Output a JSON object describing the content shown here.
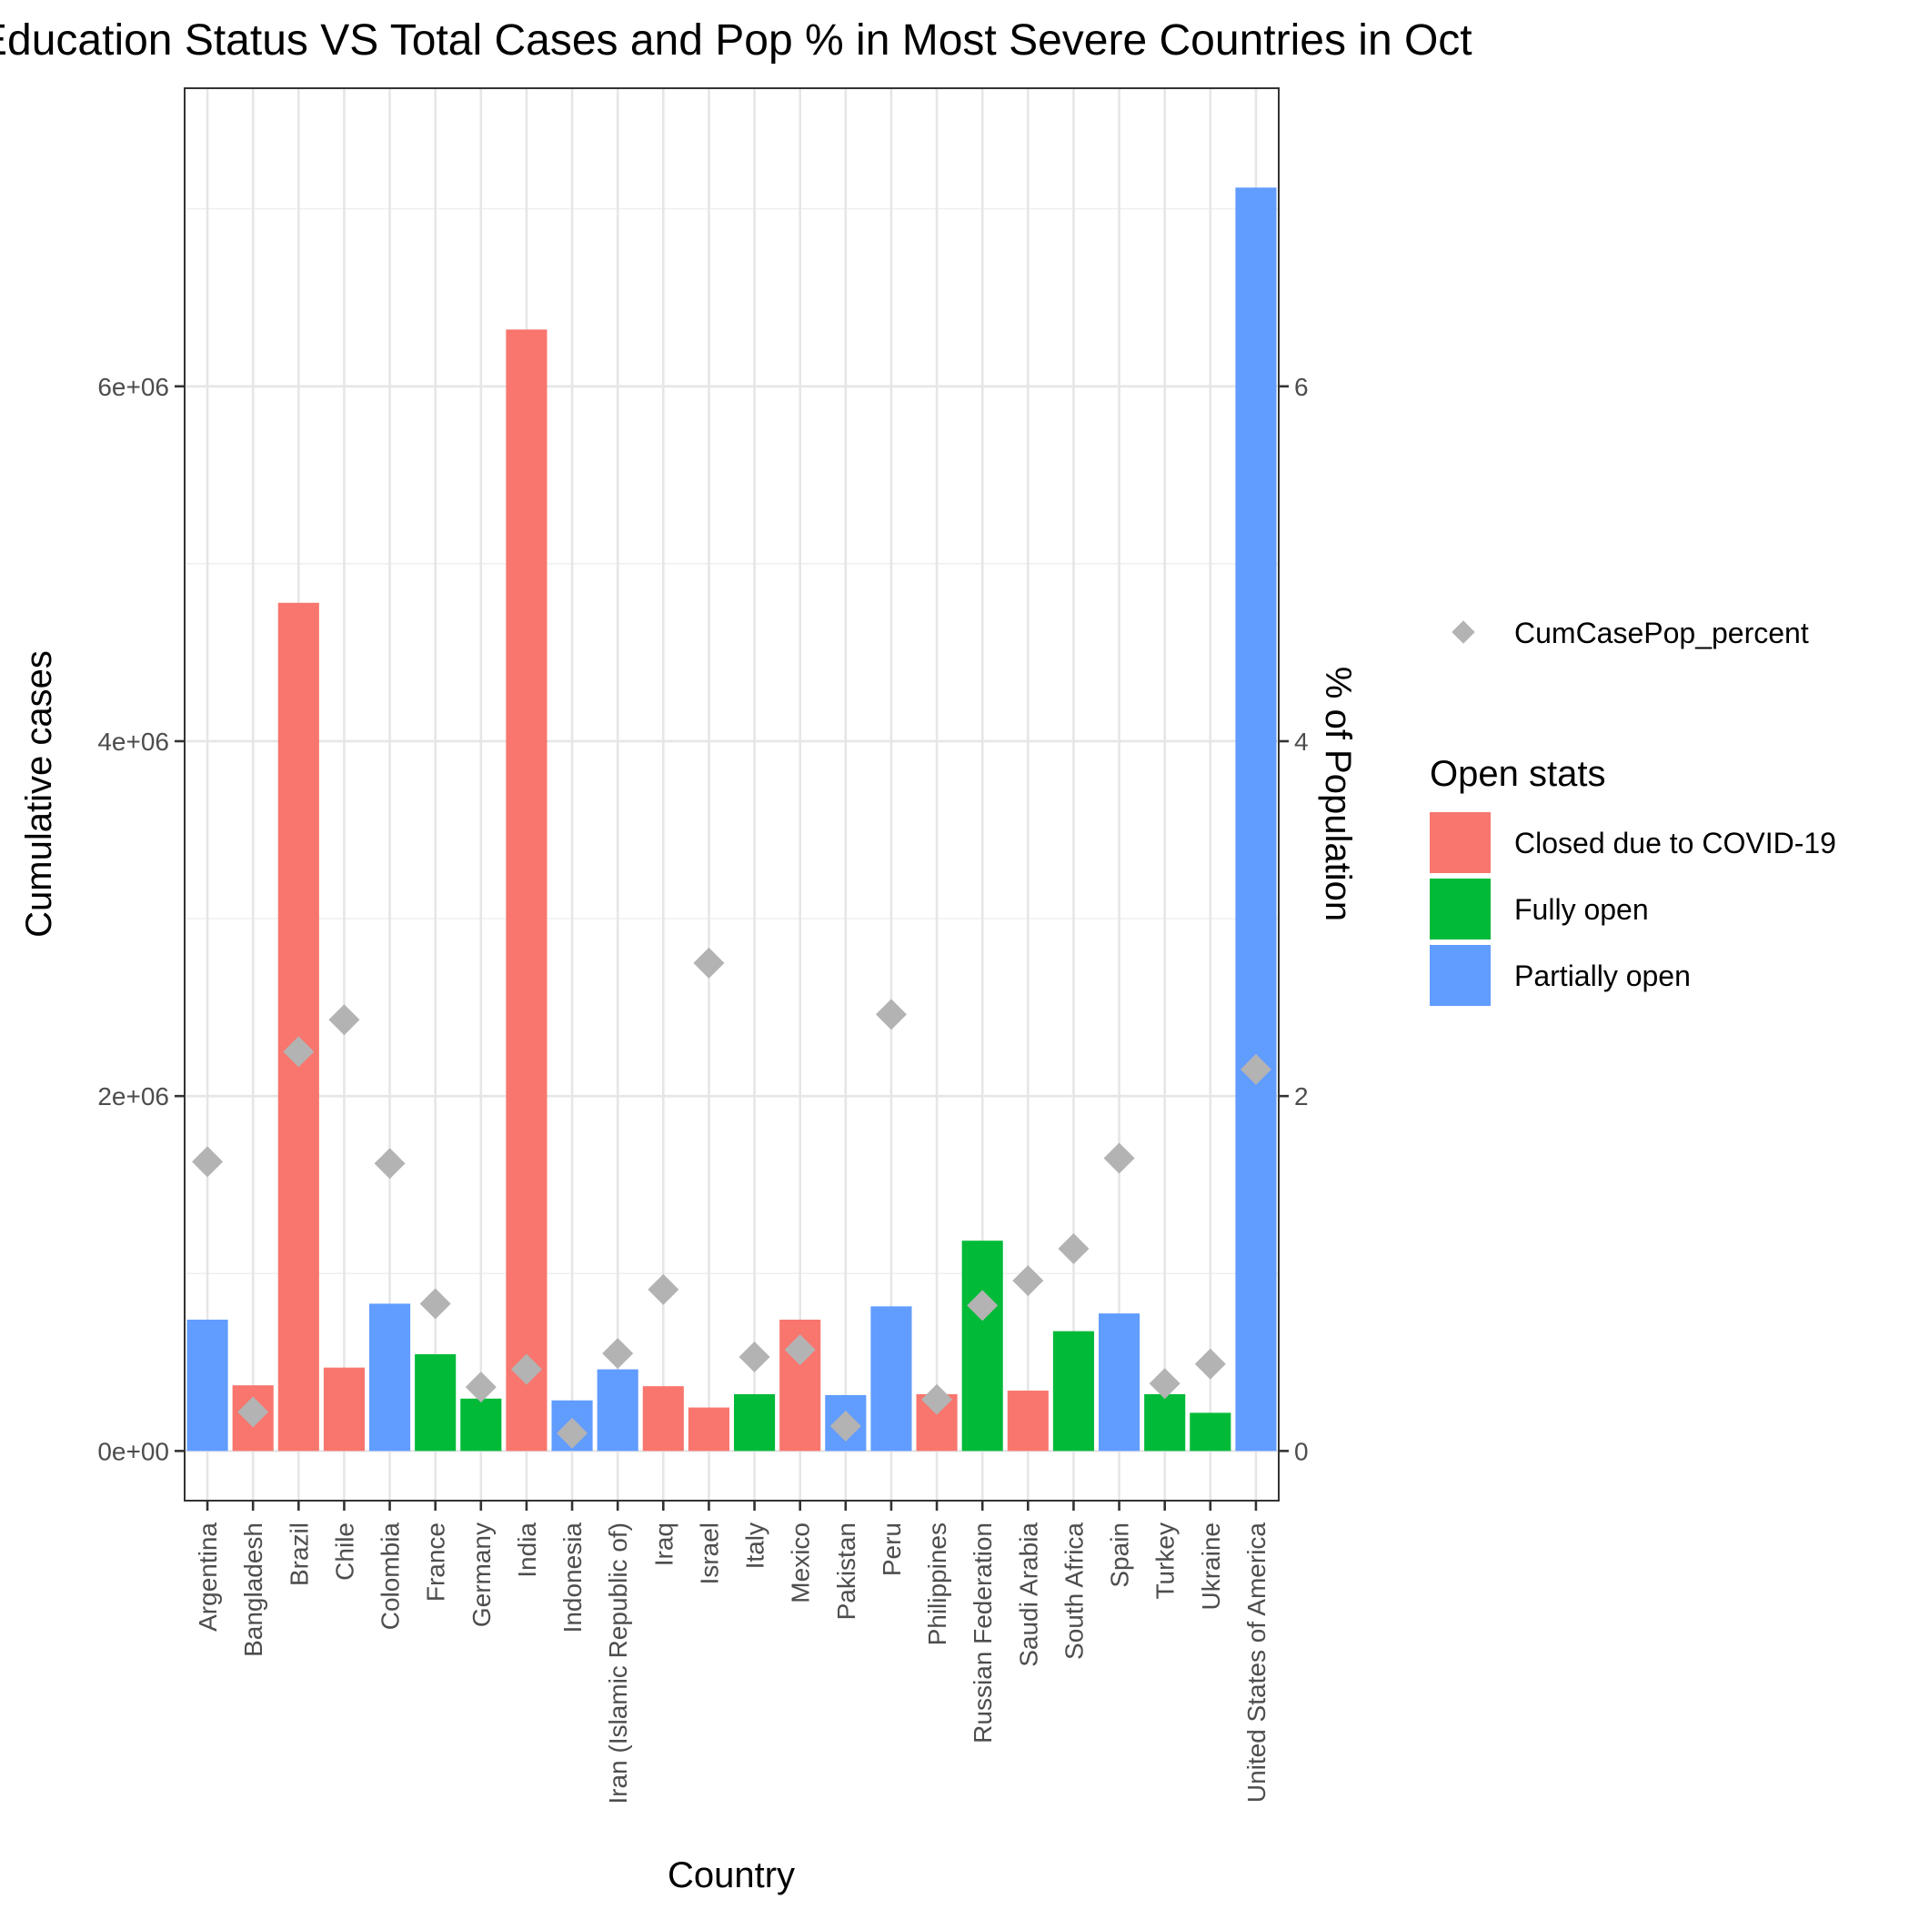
{
  "chart_data": {
    "type": "bar",
    "title": "Education Status VS Total Cases and Pop % in Most Severe Countries in Oct",
    "xlabel": "Country",
    "ylabel": "Cumulative cases",
    "ylabel_right": "% of Population",
    "ylim": [
      -280000,
      7680000
    ],
    "ylim_right": [
      -0.28,
      7.68
    ],
    "y_ticks": [
      "0e+00",
      "2e+06",
      "4e+06",
      "6e+06"
    ],
    "y_tick_values": [
      0,
      2000000,
      4000000,
      6000000
    ],
    "y_ticks_right": [
      "0",
      "2",
      "4",
      "6"
    ],
    "y_tick_values_right": [
      0,
      2,
      4,
      6
    ],
    "grid": true,
    "legend_position": "right",
    "point_legend_label": "CumCasePop_percent",
    "fill_legend_title": "Open stats",
    "status_legend": [
      {
        "name": "Closed due to COVID-19",
        "color": "#F8766D"
      },
      {
        "name": "Fully open",
        "color": "#00BA38"
      },
      {
        "name": "Partially open",
        "color": "#619CFF"
      }
    ],
    "point_color": "#B3B3B3",
    "categories": [
      "Argentina",
      "Bangladesh",
      "Brazil",
      "Chile",
      "Colombia",
      "France",
      "Germany",
      "India",
      "Indonesia",
      "Iran (Islamic Republic of)",
      "Iraq",
      "Israel",
      "Italy",
      "Mexico",
      "Pakistan",
      "Peru",
      "Philippines",
      "Russian Federation",
      "Saudi Arabia",
      "South Africa",
      "Spain",
      "Turkey",
      "Ukraine",
      "United States of America"
    ],
    "status": [
      "Partially open",
      "Closed due to COVID-19",
      "Closed due to COVID-19",
      "Closed due to COVID-19",
      "Partially open",
      "Fully open",
      "Fully open",
      "Closed due to COVID-19",
      "Partially open",
      "Partially open",
      "Closed due to COVID-19",
      "Closed due to COVID-19",
      "Fully open",
      "Closed due to COVID-19",
      "Partially open",
      "Partially open",
      "Closed due to COVID-19",
      "Fully open",
      "Closed due to COVID-19",
      "Fully open",
      "Partially open",
      "Fully open",
      "Fully open",
      "Partially open"
    ],
    "values": [
      740000,
      370000,
      4780000,
      470000,
      830000,
      545000,
      295000,
      6320000,
      285000,
      460000,
      365000,
      245000,
      320000,
      740000,
      315000,
      815000,
      320000,
      1185000,
      340000,
      675000,
      775000,
      320000,
      215000,
      7120000
    ],
    "percent": [
      1.63,
      0.22,
      2.25,
      2.43,
      1.62,
      0.83,
      0.36,
      0.46,
      0.1,
      0.55,
      0.91,
      2.75,
      0.53,
      0.57,
      0.14,
      2.46,
      0.29,
      0.82,
      0.96,
      1.14,
      1.65,
      0.38,
      0.49,
      2.15
    ]
  }
}
